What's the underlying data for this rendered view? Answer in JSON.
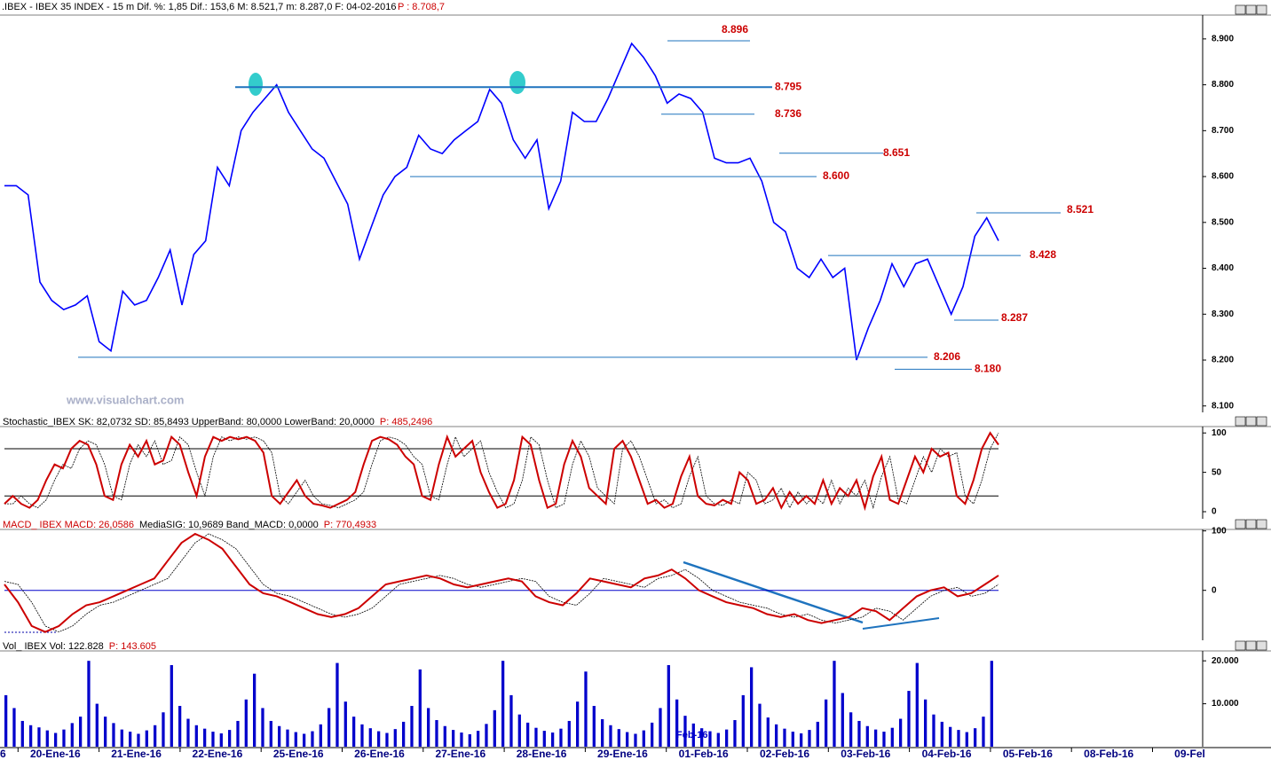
{
  "header": {
    "title": ".IBEX - IBEX 35 INDEX - 15 m  Dif. %: 1,85  Dif.: 153,6  M: 8.521,7  m: 8.287,0  F: 04-02-2016",
    "price": "P : 8.708,7"
  },
  "watermark": "www.visualchart.com",
  "month_label": "Feb-16",
  "dates": [
    "6",
    "20-Ene-16",
    "21-Ene-16",
    "22-Ene-16",
    "25-Ene-16",
    "26-Ene-16",
    "27-Ene-16",
    "28-Ene-16",
    "29-Ene-16",
    "01-Feb-16",
    "02-Feb-16",
    "03-Feb-16",
    "04-Feb-16",
    "05-Feb-16",
    "08-Feb-16",
    "09-Fel"
  ],
  "chart_data": [
    {
      "type": "line",
      "color": "#0000ff",
      "values": [
        8580,
        8580,
        8560,
        8370,
        8330,
        8310,
        8320,
        8340,
        8240,
        8220,
        8350,
        8320,
        8330,
        8380,
        8440,
        8320,
        8430,
        8460,
        8620,
        8580,
        8700,
        8740,
        8770,
        8800,
        8740,
        8700,
        8660,
        8640,
        8590,
        8540,
        8420,
        8490,
        8560,
        8600,
        8620,
        8690,
        8660,
        8650,
        8680,
        8700,
        8720,
        8790,
        8760,
        8680,
        8640,
        8680,
        8530,
        8590,
        8740,
        8720,
        8720,
        8770,
        8830,
        8890,
        8860,
        8820,
        8760,
        8780,
        8770,
        8740,
        8640,
        8630,
        8630,
        8640,
        8590,
        8500,
        8480,
        8400,
        8380,
        8420,
        8380,
        8400,
        8200,
        8270,
        8330,
        8410,
        8360,
        8410,
        8420,
        8360,
        8300,
        8360,
        8470,
        8510,
        8460
      ],
      "ylim": [
        8086,
        8950
      ],
      "yticks": [
        {
          "value": 8100,
          "label": "8.100"
        },
        {
          "value": 8200,
          "label": "8.200"
        },
        {
          "value": 8300,
          "label": "8.300"
        },
        {
          "value": 8400,
          "label": "8.400"
        },
        {
          "value": 8500,
          "label": "8.500"
        },
        {
          "value": 8600,
          "label": "8.600"
        },
        {
          "value": 8700,
          "label": "8.700"
        },
        {
          "value": 8800,
          "label": "8.800"
        },
        {
          "value": 8900,
          "label": "8.900"
        }
      ],
      "annotations": [
        {
          "value": 8896,
          "label": "8.896"
        },
        {
          "value": 8795,
          "label": "8.795"
        },
        {
          "value": 8736,
          "label": "8.736"
        },
        {
          "value": 8651,
          "label": "8.651"
        },
        {
          "value": 8600,
          "label": "8.600"
        },
        {
          "value": 8521,
          "label": "8.521"
        },
        {
          "value": 8428,
          "label": "8.428"
        },
        {
          "value": 8287,
          "label": "8.287"
        },
        {
          "value": 8206,
          "label": "8.206"
        },
        {
          "value": 8180,
          "label": "8.180"
        }
      ]
    },
    {
      "type": "line",
      "title": "Stochastic_IBEX SK: 82,0732  SD: 85,8493  UpperBand: 80,0000  LowerBand: 20,0000",
      "price": "P: 485,2496",
      "ylim": [
        -9,
        107
      ],
      "yticks": [
        0,
        50,
        100
      ],
      "bands": [
        80,
        20
      ],
      "series": [
        {
          "color": "#cc0000",
          "values": [
            10,
            20,
            10,
            5,
            15,
            40,
            60,
            55,
            80,
            90,
            85,
            60,
            20,
            15,
            60,
            85,
            70,
            90,
            60,
            65,
            95,
            85,
            50,
            20,
            70,
            95,
            90,
            95,
            92,
            95,
            90,
            75,
            20,
            10,
            25,
            40,
            20,
            10,
            8,
            5,
            10,
            15,
            25,
            60,
            90,
            95,
            92,
            85,
            70,
            60,
            20,
            15,
            60,
            95,
            70,
            80,
            90,
            50,
            25,
            5,
            10,
            40,
            95,
            85,
            40,
            5,
            10,
            60,
            90,
            70,
            30,
            20,
            10,
            80,
            90,
            70,
            40,
            10,
            15,
            5,
            10,
            45,
            70,
            20,
            10,
            8,
            15,
            10,
            50,
            40,
            10,
            15,
            30,
            5,
            25,
            10,
            20,
            10,
            40,
            10,
            30,
            20,
            40,
            5,
            45,
            70,
            15,
            10,
            40,
            70,
            50,
            80,
            70,
            75,
            20,
            10,
            40,
            80,
            100,
            85
          ]
        },
        {
          "color": "#000000",
          "values": [
            10,
            10,
            20,
            10,
            5,
            15,
            40,
            60,
            55,
            80,
            90,
            85,
            60,
            20,
            15,
            60,
            85,
            70,
            90,
            60,
            65,
            95,
            85,
            50,
            20,
            70,
            95,
            90,
            95,
            92,
            95,
            90,
            75,
            20,
            10,
            25,
            40,
            20,
            10,
            8,
            5,
            10,
            15,
            25,
            60,
            90,
            95,
            92,
            85,
            70,
            60,
            20,
            15,
            60,
            95,
            70,
            80,
            90,
            50,
            25,
            5,
            10,
            40,
            95,
            85,
            40,
            5,
            10,
            60,
            90,
            70,
            30,
            20,
            10,
            80,
            90,
            70,
            40,
            10,
            15,
            5,
            10,
            45,
            70,
            20,
            10,
            8,
            15,
            10,
            50,
            40,
            10,
            15,
            30,
            5,
            25,
            10,
            20,
            10,
            40,
            10,
            30,
            20,
            40,
            5,
            45,
            70,
            15,
            10,
            40,
            70,
            50,
            80,
            70,
            75,
            20,
            10,
            40,
            80,
            100
          ]
        }
      ]
    },
    {
      "type": "line",
      "title": "MACD_ IBEX MACD: 26,0586",
      "subtitle": "MediaSIG: 10,9689 Band_MACD: 0,0000",
      "price": "P: 770,4933",
      "ylim": [
        -84,
        101
      ],
      "yticks": [
        0,
        100
      ],
      "bands": [
        0
      ],
      "series": [
        {
          "color": "#cc0000",
          "values": [
            10,
            -20,
            -60,
            -70,
            -60,
            -40,
            -25,
            -20,
            -10,
            0,
            10,
            20,
            50,
            80,
            95,
            85,
            70,
            40,
            10,
            -5,
            -10,
            -20,
            -30,
            -40,
            -45,
            -40,
            -30,
            -10,
            10,
            15,
            20,
            25,
            20,
            10,
            5,
            10,
            15,
            20,
            15,
            -10,
            -20,
            -25,
            -5,
            20,
            15,
            10,
            5,
            20,
            25,
            35,
            20,
            0,
            -10,
            -20,
            -25,
            -30,
            -40,
            -45,
            -40,
            -50,
            -55,
            -50,
            -45,
            -30,
            -35,
            -50,
            -30,
            -10,
            0,
            5,
            -10,
            -5,
            10,
            25
          ]
        },
        {
          "color": "#000000",
          "values": [
            15,
            10,
            -20,
            -60,
            -70,
            -60,
            -40,
            -25,
            -20,
            -10,
            0,
            10,
            20,
            50,
            80,
            95,
            85,
            70,
            40,
            10,
            -5,
            -10,
            -20,
            -30,
            -40,
            -45,
            -40,
            -30,
            -10,
            10,
            15,
            20,
            25,
            20,
            10,
            5,
            10,
            15,
            20,
            15,
            -10,
            -20,
            -25,
            -5,
            20,
            15,
            10,
            5,
            20,
            25,
            35,
            20,
            0,
            -10,
            -20,
            -25,
            -30,
            -40,
            -45,
            -40,
            -50,
            -55,
            -50,
            -45,
            -30,
            -35,
            -50,
            -30,
            -10,
            0,
            5,
            -10,
            -5,
            10
          ]
        }
      ]
    },
    {
      "type": "bar",
      "title": "Vol_ IBEX Vol: 122.828",
      "price": "P: 143.605",
      "color": "#0000cc",
      "ylim": [
        0,
        22100
      ],
      "yticks": [
        {
          "value": 10000,
          "label": "10.000"
        },
        {
          "value": 20000,
          "label": "20.000"
        }
      ],
      "values": [
        12000,
        9000,
        6000,
        5000,
        4500,
        3800,
        3200,
        4000,
        5500,
        7000,
        20000,
        10000,
        7000,
        5500,
        4000,
        3500,
        3000,
        3800,
        5000,
        8000,
        19000,
        9500,
        6500,
        5000,
        4200,
        3500,
        3100,
        3900,
        6000,
        11000,
        17000,
        9000,
        6000,
        4800,
        4000,
        3400,
        3000,
        3600,
        5200,
        9000,
        19500,
        10500,
        7000,
        5200,
        4300,
        3600,
        3200,
        4100,
        5800,
        9500,
        18000,
        9000,
        6200,
        4800,
        3900,
        3300,
        2900,
        3700,
        5300,
        8500,
        20000,
        12000,
        7500,
        5600,
        4400,
        3700,
        3300,
        4200,
        6000,
        10500,
        17500,
        9500,
        6400,
        5000,
        4100,
        3400,
        3000,
        3800,
        5600,
        9000,
        19000,
        11000,
        7200,
        5400,
        4300,
        3600,
        3200,
        4000,
        6200,
        12000,
        18500,
        10000,
        6800,
        5200,
        4200,
        3500,
        3100,
        3900,
        5800,
        11000,
        20000,
        12500,
        8000,
        6000,
        4800,
        4000,
        3500,
        4400,
        6500,
        13000,
        19500,
        11000,
        7500,
        5800,
        4600,
        3900,
        3400,
        4300,
        7000,
        20000
      ]
    }
  ]
}
